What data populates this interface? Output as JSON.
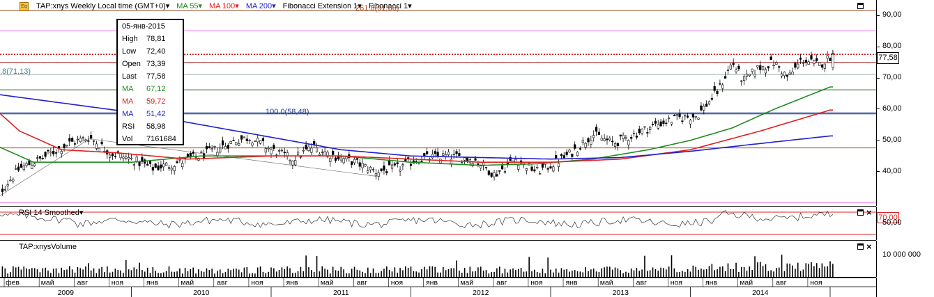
{
  "toolbar": {
    "symbol_label": "TAP:xnys Weekly Local time (GMT+0)",
    "ma55_label": "MA 55",
    "ma100_label": "MA 100",
    "ma200_label": "MA 200",
    "fib_ext_label": "Fibonacci Extension 1",
    "fib_label": "Fibonacci 1"
  },
  "tooltip": {
    "date": "05-янв-2015",
    "rows": [
      {
        "label": "High",
        "value": "78,81"
      },
      {
        "label": "Low",
        "value": "72,40"
      },
      {
        "label": "Open",
        "value": "73,39"
      },
      {
        "label": "Last",
        "value": "77,58"
      },
      {
        "label": "MA",
        "value": "67,12"
      },
      {
        "label": "MA",
        "value": "59,72"
      },
      {
        "label": "MA",
        "value": "51,42"
      },
      {
        "label": "RSI",
        "value": "58,98"
      },
      {
        "label": "Vol",
        "value": "7161684"
      }
    ]
  },
  "annotations": {
    "fib_left": ".8(71,13)",
    "fib_100": "100.0(58,48)",
    "fib_top": "261.8(91,60)",
    "last_price": "77,58"
  },
  "rsi_pane": {
    "title": "RSI 14 Smoothed",
    "level_badge": "70,00"
  },
  "volume_pane": {
    "title": "TAP:xnysVolume"
  },
  "colors": {
    "price_candles": "#000000",
    "ma55": "#228b22",
    "ma100": "#e02020",
    "ma200": "#2020d0",
    "last_price_line": "#c00000",
    "fib_pink": "#ff80ff",
    "fib_brown": "#a0522d",
    "fib_blue": "#1e3a8a",
    "rsi_band": "#e02020"
  },
  "chart_data": [
    {
      "type": "candlestick",
      "timeframe": "Weekly",
      "y_ticks": [
        "90,00",
        "80,00",
        "70,00",
        "60,00",
        "50,00",
        "40,00"
      ],
      "ylim": [
        29,
        95
      ],
      "months": [
        "фев",
        "май",
        "авг",
        "ноя",
        "янв",
        "май",
        "авг",
        "ноя",
        "янв",
        "май",
        "авг",
        "ноя",
        "янв",
        "май",
        "авг",
        "ноя",
        "янв",
        "май",
        "авг",
        "ноя",
        "янв",
        "май",
        "авг",
        "ноя"
      ],
      "years": [
        "2009",
        "2010",
        "2011",
        "2012",
        "2013",
        "2014"
      ],
      "series": [
        {
          "name": "TAP:xnys",
          "anchors": [
            [
              2009.05,
              33
            ],
            [
              2009.2,
              41
            ],
            [
              2009.35,
              44
            ],
            [
              2009.55,
              49
            ],
            [
              2009.7,
              51
            ],
            [
              2009.85,
              46
            ],
            [
              2010.0,
              44
            ],
            [
              2010.15,
              41
            ],
            [
              2010.35,
              43
            ],
            [
              2010.55,
              46
            ],
            [
              2010.75,
              50
            ],
            [
              2010.85,
              51
            ],
            [
              2011.0,
              47
            ],
            [
              2011.15,
              44
            ],
            [
              2011.3,
              48
            ],
            [
              2011.45,
              45
            ],
            [
              2011.6,
              43
            ],
            [
              2011.75,
              40
            ],
            [
              2011.9,
              41
            ],
            [
              2012.05,
              44
            ],
            [
              2012.25,
              45
            ],
            [
              2012.45,
              44
            ],
            [
              2012.6,
              39
            ],
            [
              2012.75,
              44
            ],
            [
              2012.9,
              40
            ],
            [
              2013.0,
              42
            ],
            [
              2013.15,
              46
            ],
            [
              2013.3,
              52
            ],
            [
              2013.45,
              49
            ],
            [
              2013.6,
              52
            ],
            [
              2013.75,
              55
            ],
            [
              2013.9,
              57
            ],
            [
              2014.05,
              58
            ],
            [
              2014.2,
              66
            ],
            [
              2014.3,
              75
            ],
            [
              2014.38,
              69
            ],
            [
              2014.48,
              73
            ],
            [
              2014.6,
              75
            ],
            [
              2014.7,
              70
            ],
            [
              2014.8,
              76
            ],
            [
              2014.92,
              74
            ],
            [
              2015.02,
              77.58
            ]
          ]
        },
        {
          "name": "MA 55",
          "values": [
            [
              2009.0,
              49
            ],
            [
              2009.3,
              43
            ],
            [
              2009.6,
              43
            ],
            [
              2010.0,
              43
            ],
            [
              2010.5,
              45
            ],
            [
              2011.0,
              45
            ],
            [
              2011.5,
              45
            ],
            [
              2012.0,
              43
            ],
            [
              2012.5,
              42
            ],
            [
              2012.9,
              42.5
            ],
            [
              2013.3,
              44
            ],
            [
              2013.7,
              47
            ],
            [
              2014.0,
              50
            ],
            [
              2014.3,
              54
            ],
            [
              2014.6,
              60
            ],
            [
              2015.0,
              67.12
            ]
          ]
        },
        {
          "name": "MA 100",
          "values": [
            [
              2009.0,
              61
            ],
            [
              2009.2,
              53
            ],
            [
              2009.5,
              47
            ],
            [
              2009.9,
              46
            ],
            [
              2010.4,
              44
            ],
            [
              2011.0,
              45
            ],
            [
              2011.5,
              45
            ],
            [
              2012.0,
              44
            ],
            [
              2012.5,
              43
            ],
            [
              2013.0,
              43
            ],
            [
              2013.5,
              44
            ],
            [
              2014.0,
              47
            ],
            [
              2014.5,
              53
            ],
            [
              2015.0,
              59.72
            ]
          ]
        },
        {
          "name": "MA 200",
          "values": [
            [
              2009.0,
              65
            ],
            [
              2009.5,
              62
            ],
            [
              2010.0,
              59
            ],
            [
              2010.5,
              55
            ],
            [
              2011.0,
              51
            ],
            [
              2011.5,
              47
            ],
            [
              2012.0,
              45
            ],
            [
              2012.5,
              44.5
            ],
            [
              2013.0,
              44
            ],
            [
              2013.5,
              44.5
            ],
            [
              2014.0,
              46.5
            ],
            [
              2014.5,
              49
            ],
            [
              2015.0,
              51.42
            ]
          ]
        }
      ],
      "horizontal_levels": [
        91.6,
        85.2,
        77.58,
        75.0,
        71.13,
        66.2,
        58.48,
        47.6,
        30.0
      ]
    },
    {
      "type": "line",
      "name": "RSI 14 Smoothed",
      "y_ticks": [
        "70,00",
        "50,00"
      ],
      "ylim": [
        20,
        80
      ],
      "levels": [
        70,
        30
      ]
    },
    {
      "type": "bar",
      "name": "TAP:xnysVolume",
      "y_ticks": [
        "10 000 000"
      ],
      "ylim": [
        0,
        17000000
      ]
    }
  ]
}
